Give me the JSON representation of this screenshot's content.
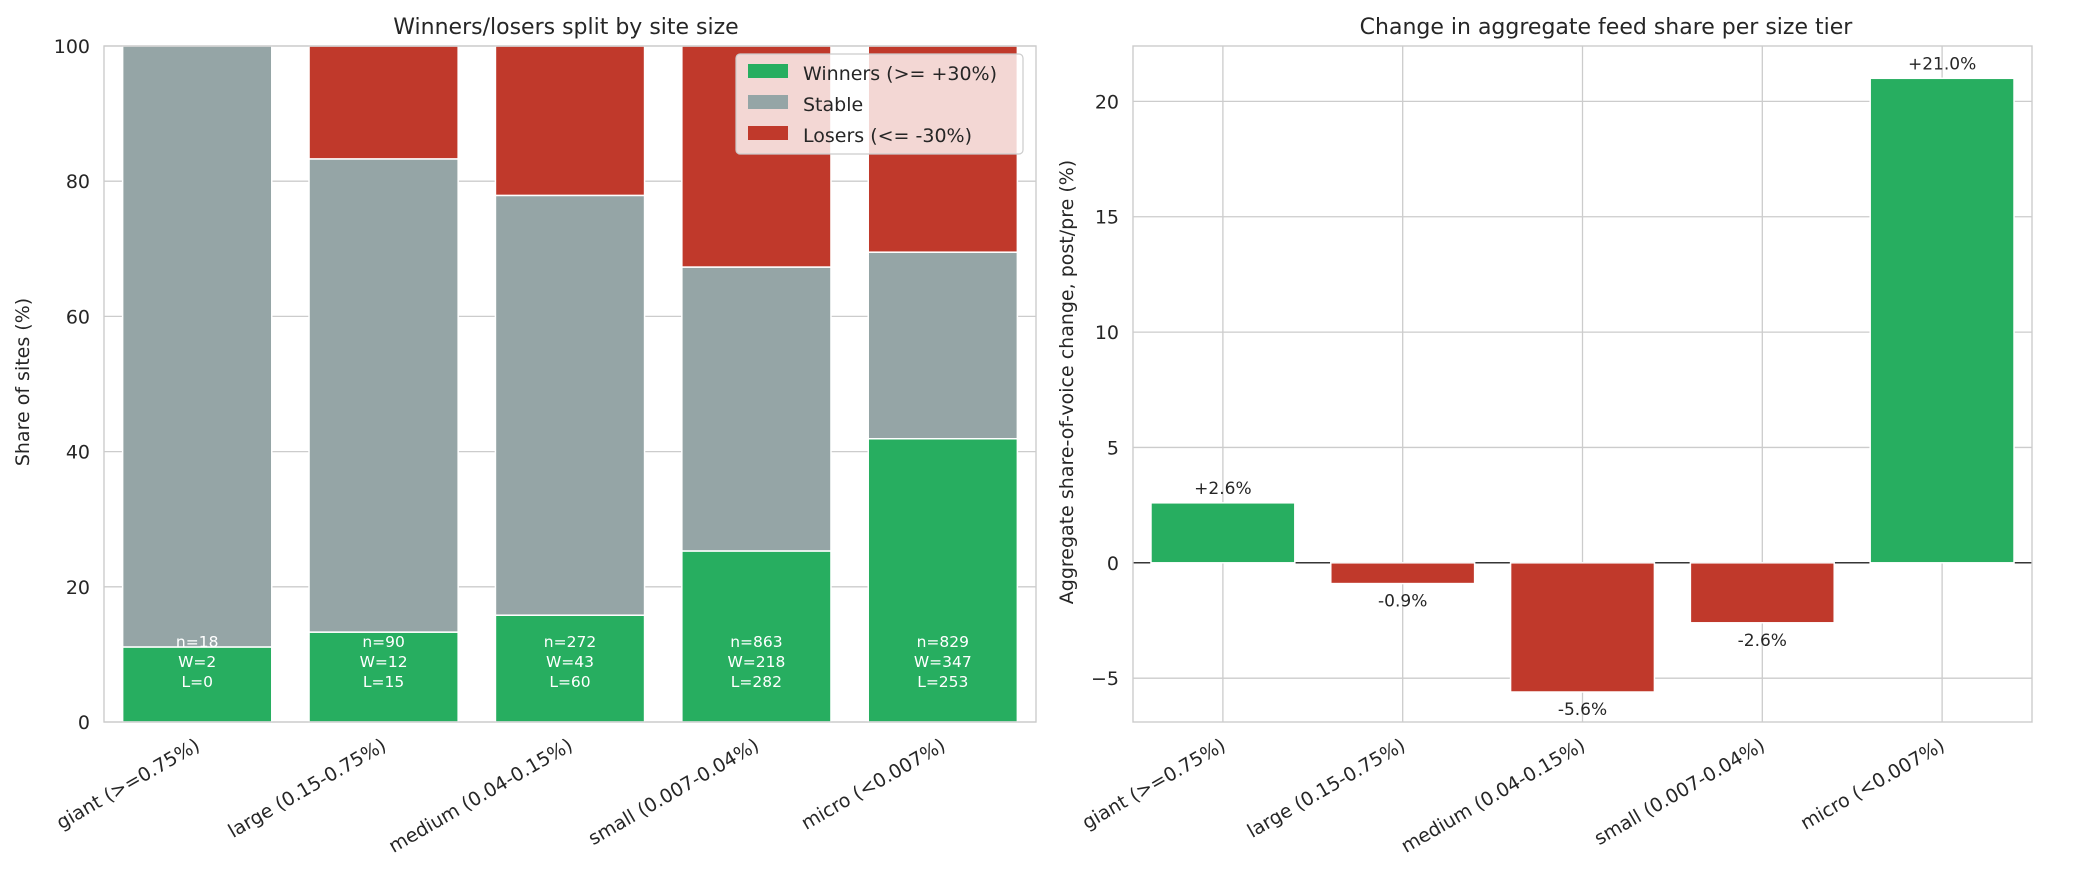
{
  "colors": {
    "winners": "#27ae60",
    "stable": "#95a5a6",
    "losers": "#c0392b",
    "grid": "#cccccc",
    "axis_text": "#262626"
  },
  "chart_data": [
    {
      "type": "bar",
      "stacked": true,
      "title": "Winners/losers split by site size",
      "xlabel": "",
      "ylabel": "Share of sites (%)",
      "ylim": [
        0,
        100
      ],
      "yticks": [
        "0",
        "20",
        "40",
        "60",
        "80",
        "100"
      ],
      "grid": true,
      "legend_position": "top-right",
      "categories": [
        "giant (>=0.75%)",
        "large (0.15-0.75%)",
        "medium (0.04-0.15%)",
        "small (0.007-0.04%)",
        "micro (<0.007%)"
      ],
      "series": [
        {
          "name": "Winners (>= +30%)",
          "values": [
            11.1,
            13.3,
            15.8,
            25.3,
            41.9
          ]
        },
        {
          "name": "Stable",
          "values": [
            88.9,
            70.0,
            62.1,
            42.0,
            27.6
          ]
        },
        {
          "name": "Losers (<= -30%)",
          "values": [
            0.0,
            16.7,
            22.1,
            32.7,
            30.5
          ]
        }
      ],
      "annotations": [
        {
          "n": "n=18",
          "w": "W=2",
          "l": "L=0"
        },
        {
          "n": "n=90",
          "w": "W=12",
          "l": "L=15"
        },
        {
          "n": "n=272",
          "w": "W=43",
          "l": "L=60"
        },
        {
          "n": "n=863",
          "w": "W=218",
          "l": "L=282"
        },
        {
          "n": "n=829",
          "w": "W=347",
          "l": "L=253"
        }
      ]
    },
    {
      "type": "bar",
      "title": "Change in aggregate feed share per size tier",
      "xlabel": "",
      "ylabel": "Aggregate share-of-voice change, post/pre (%)",
      "ylim": [
        -6.9,
        22.4
      ],
      "yticks": [
        "−5",
        "0",
        "5",
        "10",
        "15",
        "20"
      ],
      "grid": true,
      "categories": [
        "giant (>=0.75%)",
        "large (0.15-0.75%)",
        "medium (0.04-0.15%)",
        "small (0.007-0.04%)",
        "micro (<0.007%)"
      ],
      "values": [
        2.6,
        -0.9,
        -5.6,
        -2.6,
        21.0
      ],
      "value_labels": [
        "+2.6%",
        "-0.9%",
        "-5.6%",
        "-2.6%",
        "+21.0%"
      ]
    }
  ]
}
